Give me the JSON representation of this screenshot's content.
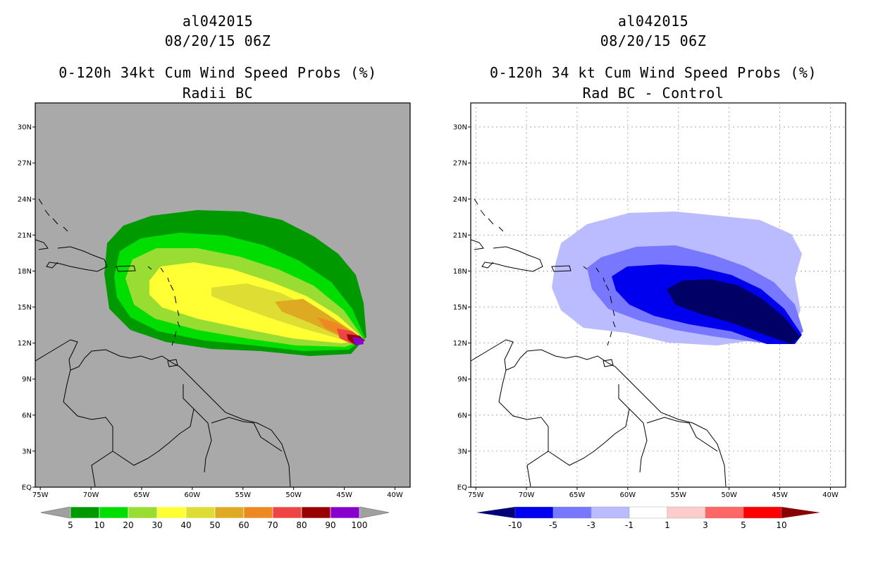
{
  "panels": [
    {
      "id": "left",
      "title_line1": "al042015",
      "title_line2": "08/20/15 06Z",
      "title_line3": "0-120h 34kt Cum Wind Speed Probs (%)",
      "title_line4": "Radii BC",
      "background": "#a9a9a9",
      "grid": false,
      "colorbar": {
        "colors": [
          "#009900",
          "#00dd00",
          "#99dd33",
          "#ffff33",
          "#dddd33",
          "#ddaa22",
          "#ee8822",
          "#ee4444",
          "#990000",
          "#8800cc"
        ],
        "labels": [
          "5",
          "10",
          "20",
          "30",
          "40",
          "50",
          "60",
          "70",
          "80",
          "90",
          "100"
        ],
        "end_color": "#a0a0a0"
      }
    },
    {
      "id": "right",
      "title_line1": "al042015",
      "title_line2": "08/20/15 06Z",
      "title_line3": "0-120h 34 kt Cum Wind Speed Probs (%)",
      "title_line4": "Rad BC - Control",
      "background": "#ffffff",
      "grid": true,
      "colorbar": {
        "colors": [
          "#0000ee",
          "#7777ff",
          "#bbbbff",
          "#ffffff",
          "#ffcccc",
          "#ff6666",
          "#ff0000"
        ],
        "labels": [
          "-10",
          "-5",
          "-3",
          "-1",
          "1",
          "3",
          "5",
          "10"
        ],
        "left_end_color": "#000077",
        "right_end_color": "#880000"
      }
    }
  ],
  "axes": {
    "lon_labels": [
      "75W",
      "70W",
      "65W",
      "60W",
      "55W",
      "50W",
      "45W",
      "40W"
    ],
    "lat_labels": [
      "EQ",
      "3N",
      "6N",
      "9N",
      "12N",
      "15N",
      "18N",
      "21N",
      "24N",
      "27N",
      "30N"
    ]
  },
  "chart_data": {
    "type": "map",
    "region": "Tropical Atlantic / Caribbean",
    "lon_range": [
      -75.5,
      -38.5
    ],
    "lat_range": [
      0,
      32
    ],
    "storm": "al042015",
    "valid": "08/20/15 06Z",
    "left_contours_pct": [
      5,
      10,
      20,
      30,
      40,
      50,
      60,
      70,
      80,
      90,
      100
    ],
    "right_contours_diff": [
      -10,
      -5,
      -3,
      -1,
      1,
      3,
      5,
      10
    ]
  }
}
